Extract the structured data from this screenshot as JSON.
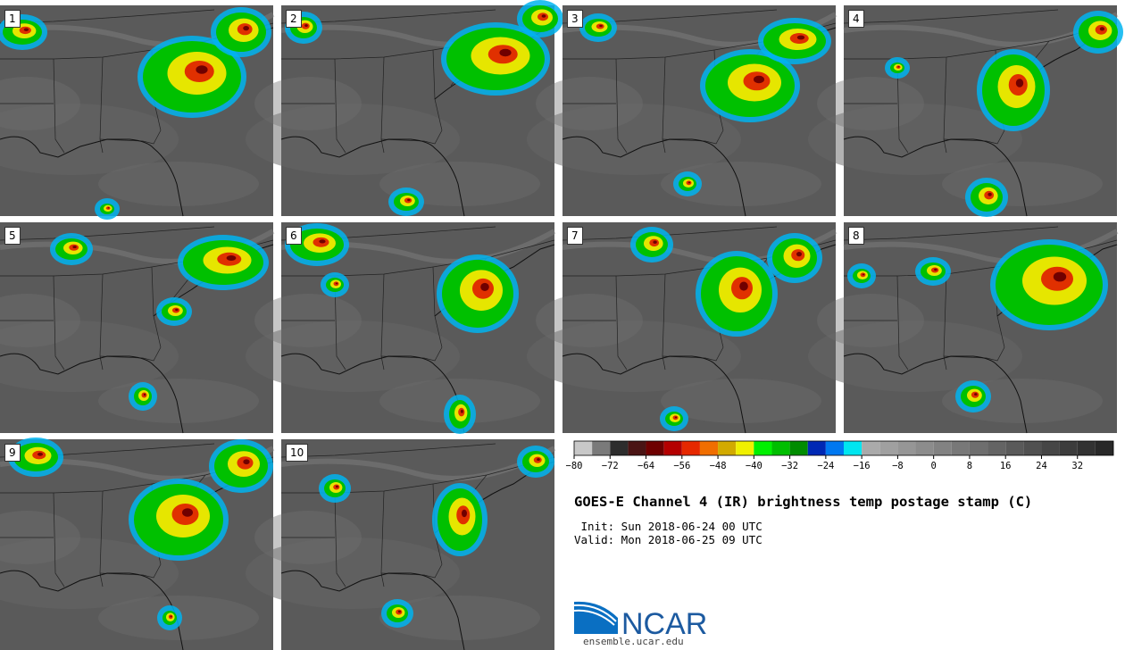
{
  "panels": [
    {
      "label": "1"
    },
    {
      "label": "2"
    },
    {
      "label": "3"
    },
    {
      "label": "4"
    },
    {
      "label": "5"
    },
    {
      "label": "6"
    },
    {
      "label": "7"
    },
    {
      "label": "8"
    },
    {
      "label": "9"
    },
    {
      "label": "10"
    }
  ],
  "colorbar": {
    "min": -80,
    "max": 40,
    "step": 4,
    "tick_labels": [
      "-80",
      "-72",
      "-64",
      "-56",
      "-48",
      "-40",
      "-32",
      "-24",
      "-16",
      "-8",
      "0",
      "8",
      "16",
      "24",
      "32"
    ],
    "tick_values": [
      -80,
      -72,
      -64,
      -56,
      -48,
      -40,
      -32,
      -24,
      -16,
      -8,
      0,
      8,
      16,
      24,
      32
    ],
    "colors": [
      "#c8c8c8",
      "#7a7a7a",
      "#2d2d2d",
      "#4a1414",
      "#6e0000",
      "#b40000",
      "#e62800",
      "#f06e00",
      "#d2aa00",
      "#f0f000",
      "#00f000",
      "#00be00",
      "#008c00",
      "#0028b4",
      "#0078f0",
      "#00e6f0",
      "#aaaaaa",
      "#a0a0a0",
      "#969696",
      "#8c8c8c",
      "#828282",
      "#787878",
      "#6e6e6e",
      "#646464",
      "#5a5a5a",
      "#505050",
      "#464646",
      "#3c3c3c",
      "#323232",
      "#282828"
    ]
  },
  "title": "GOES-E Channel 4 (IR) brightness temp postage stamp (C)",
  "init": " Init: Sun 2018-06-24 00 UTC",
  "valid": "Valid: Mon 2018-06-25 09 UTC",
  "logo": {
    "text": "NCAR",
    "url": "ensemble.ucar.edu"
  }
}
